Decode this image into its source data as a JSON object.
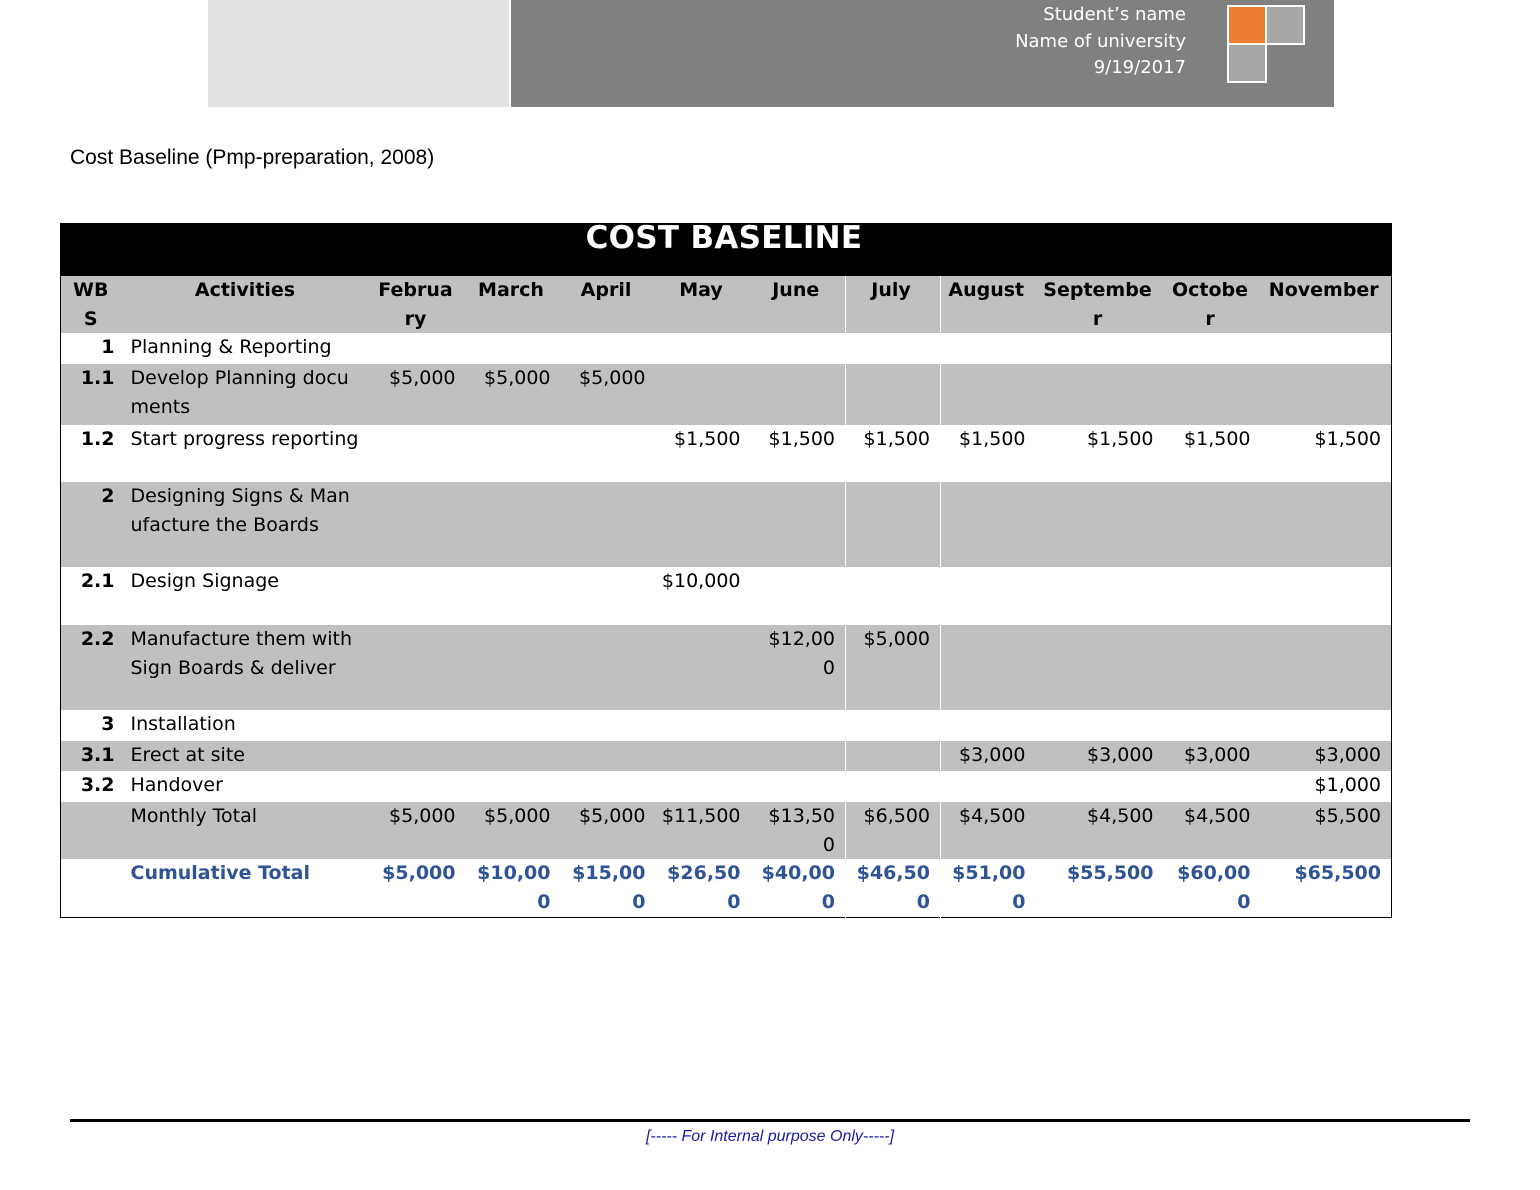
{
  "header": {
    "student_name": "Student’s name",
    "university": "Name of university",
    "date": "9/19/2017",
    "accent_color": "#ed7d31"
  },
  "doc_title": "Cost Baseline (Pmp-preparation, 2008)",
  "table": {
    "title": "COST BASELINE",
    "columns": [
      "WBS",
      "Activities",
      "February",
      "March",
      "April",
      "May",
      "June",
      "July",
      "August",
      "September",
      "October",
      "November"
    ],
    "rows": [
      {
        "wbs": "1",
        "activity": "Planning & Reporting",
        "values": [
          "",
          "",
          "",
          "",
          "",
          "",
          "",
          "",
          "",
          ""
        ]
      },
      {
        "wbs": "1.1",
        "activity": "Develop Planning documents",
        "values": [
          "$5,000",
          "$5,000",
          "$5,000",
          "",
          "",
          "",
          "",
          "",
          "",
          ""
        ]
      },
      {
        "wbs": "1.2",
        "activity": "Start progress reporting",
        "values": [
          "",
          "",
          "",
          "$1,500",
          "$1,500",
          "$1,500",
          "$1,500",
          "$1,500",
          "$1,500",
          "$1,500"
        ]
      },
      {
        "wbs": "2",
        "activity": "Designing Signs & Manufacture the Boards",
        "values": [
          "",
          "",
          "",
          "",
          "",
          "",
          "",
          "",
          "",
          ""
        ]
      },
      {
        "wbs": "2.1",
        "activity": "Design Signage",
        "values": [
          "",
          "",
          "",
          "$10,000",
          "",
          "",
          "",
          "",
          "",
          ""
        ]
      },
      {
        "wbs": "2.2",
        "activity": "Manufacture them with Sign Boards & deliver",
        "values": [
          "",
          "",
          "",
          "",
          "$12,000",
          "$5,000",
          "",
          "",
          "",
          ""
        ]
      },
      {
        "wbs": "3",
        "activity": "Installation",
        "values": [
          "",
          "",
          "",
          "",
          "",
          "",
          "",
          "",
          "",
          ""
        ]
      },
      {
        "wbs": "3.1",
        "activity": "Erect at site",
        "values": [
          "",
          "",
          "",
          "",
          "",
          "",
          "$3,000",
          "$3,000",
          "$3,000",
          "$3,000"
        ]
      },
      {
        "wbs": "3.2",
        "activity": "Handover",
        "values": [
          "",
          "",
          "",
          "",
          "",
          "",
          "",
          "",
          "",
          "$1,000"
        ]
      },
      {
        "wbs": "",
        "activity": "Monthly Total",
        "values": [
          "$5,000",
          "$5,000",
          "$5,000",
          "$11,500",
          "$13,500",
          "$6,500",
          "$4,500",
          "$4,500",
          "$4,500",
          "$5,500"
        ]
      },
      {
        "wbs": "",
        "activity": "Cumulative Total",
        "values": [
          "$5,000",
          "$10,000",
          "$15,000",
          "$26,500",
          "$40,000",
          "$46,500",
          "$51,000",
          "$55,500",
          "$60,000",
          "$65,500"
        ]
      }
    ],
    "cumulative_color": "#2f5496"
  },
  "footer": {
    "text": "[----- For Internal purpose Only-----]"
  }
}
